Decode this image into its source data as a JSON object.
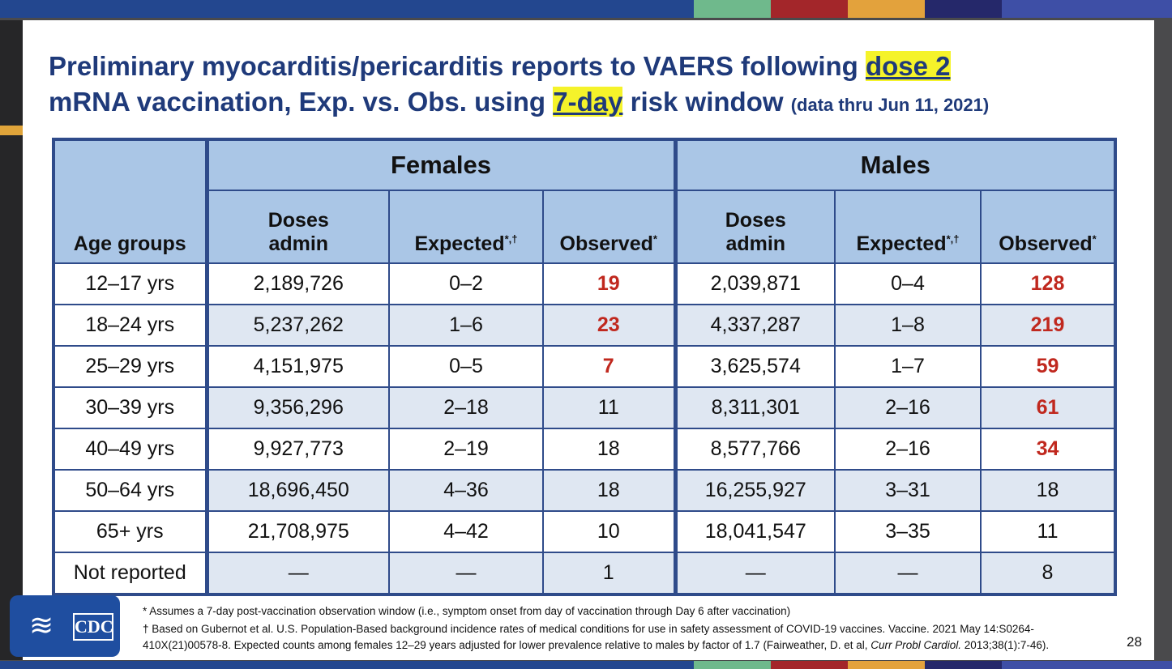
{
  "colors": {
    "bar_main": "#23478f",
    "bar_green": "#6fb98c",
    "bar_red": "#a3262a",
    "bar_orange": "#e3a23c",
    "bar_navy": "#25286a",
    "bar_blue": "#3e4fa6",
    "highlight": "#f5f32a",
    "title": "#1f3a7a",
    "red_value": "#c0281e"
  },
  "title": {
    "part1": "Preliminary myocarditis/pericarditis reports to VAERS following ",
    "hl1": "dose 2",
    "part2": "mRNA vaccination, Exp. vs. Obs. using ",
    "hl2": "7-day",
    "part3": " risk window ",
    "note": "(data thru Jun 11, 2021)"
  },
  "table": {
    "age_header": "Age groups",
    "females": "Females",
    "males": "Males",
    "doses": "Doses admin",
    "expected": "Expected",
    "expected_mark": "*,†",
    "observed": "Observed",
    "observed_mark": "*",
    "rows": [
      {
        "age": "12–17 yrs",
        "f_doses": "2,189,726",
        "f_exp": "0–2",
        "f_obs": "19",
        "f_red": true,
        "m_doses": "2,039,871",
        "m_exp": "0–4",
        "m_obs": "128",
        "m_red": true
      },
      {
        "age": "18–24 yrs",
        "f_doses": "5,237,262",
        "f_exp": "1–6",
        "f_obs": "23",
        "f_red": true,
        "m_doses": "4,337,287",
        "m_exp": "1–8",
        "m_obs": "219",
        "m_red": true
      },
      {
        "age": "25–29 yrs",
        "f_doses": "4,151,975",
        "f_exp": "0–5",
        "f_obs": "7",
        "f_red": true,
        "m_doses": "3,625,574",
        "m_exp": "1–7",
        "m_obs": "59",
        "m_red": true
      },
      {
        "age": "30–39 yrs",
        "f_doses": "9,356,296",
        "f_exp": "2–18",
        "f_obs": "11",
        "f_red": false,
        "m_doses": "8,311,301",
        "m_exp": "2–16",
        "m_obs": "61",
        "m_red": true
      },
      {
        "age": "40–49 yrs",
        "f_doses": "9,927,773",
        "f_exp": "2–19",
        "f_obs": "18",
        "f_red": false,
        "m_doses": "8,577,766",
        "m_exp": "2–16",
        "m_obs": "34",
        "m_red": true
      },
      {
        "age": "50–64 yrs",
        "f_doses": "18,696,450",
        "f_exp": "4–36",
        "f_obs": "18",
        "f_red": false,
        "m_doses": "16,255,927",
        "m_exp": "3–31",
        "m_obs": "18",
        "m_red": false
      },
      {
        "age": "65+ yrs",
        "f_doses": "21,708,975",
        "f_exp": "4–42",
        "f_obs": "10",
        "f_red": false,
        "m_doses": "18,041,547",
        "m_exp": "3–35",
        "m_obs": "11",
        "m_red": false
      },
      {
        "age": "Not reported",
        "f_doses": "—",
        "f_exp": "—",
        "f_obs": "1",
        "f_red": false,
        "m_doses": "—",
        "m_exp": "—",
        "m_obs": "8",
        "m_red": false
      }
    ]
  },
  "logo": {
    "text": "CDC"
  },
  "footnotes": {
    "fn1": "* Assumes a 7-day post-vaccination observation window (i.e., symptom onset from day of vaccination through Day 6 after vaccination)",
    "fn2a": "† Based on Gubernot et al. U.S. Population-Based background incidence rates of medical conditions for use in safety assessment of COVID-19 vaccines. Vaccine. 2021 May 14:S0264-",
    "fn2b": "410X(21)00578-8. Expected counts among females 12–29 years adjusted for lower prevalence relative to males by factor of 1.7 (Fairweather, D. et al, ",
    "fn2c": "Curr Probl Cardiol.",
    "fn2d": " 2013;38(1):7-46)."
  },
  "page_number": "28"
}
